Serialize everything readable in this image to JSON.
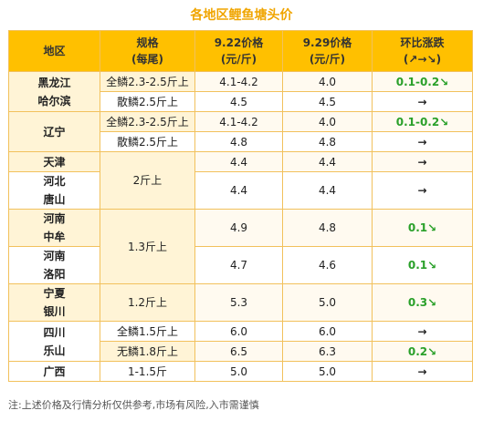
{
  "title": "各地区鲤鱼塘头价",
  "headers": {
    "region": "地区",
    "spec_line1": "规格",
    "spec_line2": "(每尾)",
    "price1_line1": "9.22价格",
    "price1_line2": "(元/斤)",
    "price2_line1": "9.29价格",
    "price2_line2": "(元/斤)",
    "change_line1": "环比涨跌",
    "change_line2": "(↗→↘)"
  },
  "rows": [
    {
      "region_line1": "黑龙江",
      "region_line2": "哈尔滨",
      "spec": "全鳞2.3-2.5斤上",
      "price1": "4.1-4.2",
      "price2": "4.0",
      "change": "0.1-0.2↘"
    },
    {
      "spec": "散鳞2.5斤上",
      "price1": "4.5",
      "price2": "4.5",
      "change": "→"
    },
    {
      "region_line1": "辽宁",
      "spec": "全鳞2.3-2.5斤上",
      "price1": "4.1-4.2",
      "price2": "4.0",
      "change": "0.1-0.2↘"
    },
    {
      "spec": "散鳞2.5斤上",
      "price1": "4.8",
      "price2": "4.8",
      "change": "→"
    },
    {
      "region_line1": "天津",
      "spec": "2斤上",
      "price1": "4.4",
      "price2": "4.4",
      "change": "→"
    },
    {
      "region_line1": "河北",
      "region_line2": "唐山",
      "price1": "4.4",
      "price2": "4.4",
      "change": "→"
    },
    {
      "region_line1": "河南",
      "region_line2": "中牟",
      "spec": "1.3斤上",
      "price1": "4.9",
      "price2": "4.8",
      "change": "0.1↘"
    },
    {
      "region_line1": "河南",
      "region_line2": "洛阳",
      "price1": "4.7",
      "price2": "4.6",
      "change": "0.1↘"
    },
    {
      "region_line1": "宁夏",
      "region_line2": "银川",
      "spec": "1.2斤上",
      "price1": "5.3",
      "price2": "5.0",
      "change": "0.3↘"
    },
    {
      "region_line1": "四川",
      "region_line2": "乐山",
      "spec": "全鳞1.5斤上",
      "price1": "6.0",
      "price2": "6.0",
      "change": "→"
    },
    {
      "spec": "无鳞1.8斤上",
      "price1": "6.5",
      "price2": "6.3",
      "change": "0.2↘"
    },
    {
      "region_line1": "广西",
      "spec": "1-1.5斤",
      "price1": "5.0",
      "price2": "5.0",
      "change": "→"
    }
  ],
  "note": "注:上述价格及行情分析仅供参考,市场有风险,入市需谨慎",
  "colors": {
    "header_bg": "#ffc000",
    "title": "#f0a500",
    "down_trend": "#2aa02a",
    "border": "#f2c15c"
  }
}
